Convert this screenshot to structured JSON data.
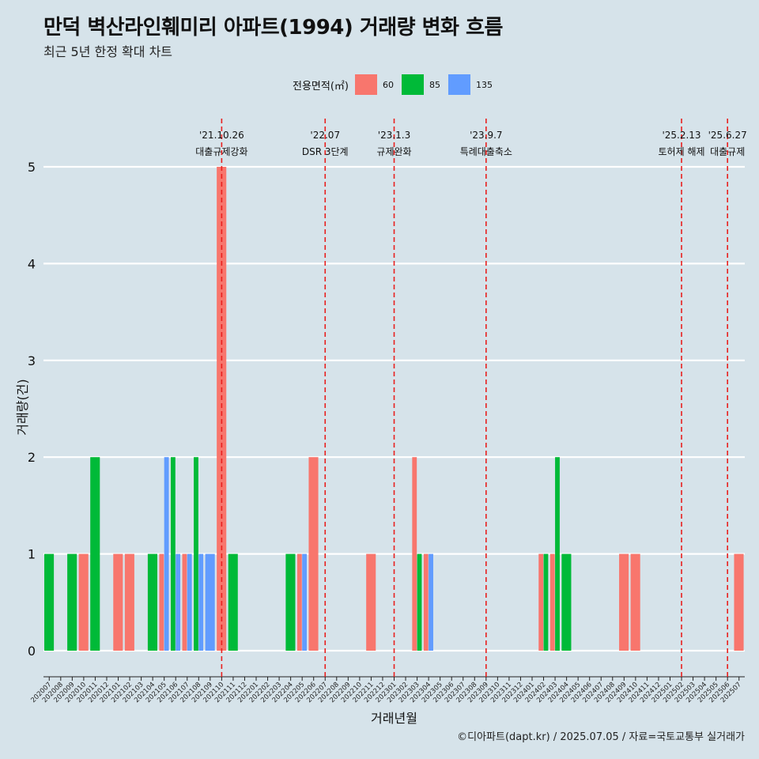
{
  "title": "만덕 벽산라인훼미리 아파트(1994) 거래량 변화 흐름",
  "subtitle": "최근 5년 한정 확대 차트",
  "caption": "©디아파트(dapt.kr) / 2025.07.05 / 자료=국토교통부 실거래가",
  "legend": {
    "title": "전용면적(㎡)",
    "items": [
      {
        "label": "60",
        "color": "#f8766d"
      },
      {
        "label": "85",
        "color": "#00ba38"
      },
      {
        "label": "135",
        "color": "#619cff"
      }
    ]
  },
  "chart_data": {
    "type": "bar",
    "xlabel": "거래년월",
    "ylabel": "거래량(건)",
    "ylim": [
      0,
      5
    ],
    "yticks": [
      0,
      1,
      2,
      3,
      4,
      5
    ],
    "grid": true,
    "legend_position": "top",
    "categories": [
      "202007",
      "202008",
      "202009",
      "202010",
      "202011",
      "202012",
      "202101",
      "202102",
      "202103",
      "202104",
      "202105",
      "202106",
      "202107",
      "202108",
      "202109",
      "202110",
      "202111",
      "202112",
      "202201",
      "202202",
      "202203",
      "202204",
      "202205",
      "202206",
      "202207",
      "202208",
      "202209",
      "202210",
      "202211",
      "202212",
      "202301",
      "202302",
      "202303",
      "202304",
      "202305",
      "202306",
      "202307",
      "202308",
      "202309",
      "202310",
      "202311",
      "202312",
      "202401",
      "202402",
      "202403",
      "202404",
      "202405",
      "202406",
      "202407",
      "202408",
      "202409",
      "202410",
      "202411",
      "202412",
      "202501",
      "202502",
      "202503",
      "202504",
      "202505",
      "202506",
      "202507"
    ],
    "series": [
      {
        "name": "60",
        "color": "#f8766d",
        "values": [
          0,
          0,
          0,
          1,
          0,
          0,
          1,
          1,
          0,
          0,
          1,
          0,
          1,
          0,
          0,
          5,
          0,
          0,
          0,
          0,
          0,
          0,
          1,
          2,
          0,
          0,
          0,
          0,
          1,
          0,
          0,
          0,
          2,
          1,
          0,
          0,
          0,
          0,
          0,
          0,
          0,
          0,
          0,
          1,
          1,
          0,
          0,
          0,
          0,
          0,
          1,
          1,
          0,
          0,
          0,
          0,
          0,
          0,
          0,
          0,
          1
        ]
      },
      {
        "name": "85",
        "color": "#00ba38",
        "values": [
          1,
          0,
          1,
          0,
          2,
          0,
          0,
          0,
          0,
          1,
          0,
          2,
          0,
          2,
          0,
          0,
          1,
          0,
          0,
          0,
          0,
          1,
          0,
          0,
          0,
          0,
          0,
          0,
          0,
          0,
          0,
          0,
          1,
          0,
          0,
          0,
          0,
          0,
          0,
          0,
          0,
          0,
          0,
          1,
          2,
          1,
          0,
          0,
          0,
          0,
          0,
          0,
          0,
          0,
          0,
          0,
          0,
          0,
          0,
          0,
          0
        ]
      },
      {
        "name": "135",
        "color": "#619cff",
        "values": [
          0,
          0,
          0,
          0,
          0,
          0,
          0,
          0,
          0,
          0,
          2,
          1,
          1,
          1,
          1,
          0,
          0,
          0,
          0,
          0,
          0,
          0,
          1,
          0,
          0,
          0,
          0,
          0,
          0,
          0,
          0,
          0,
          0,
          1,
          0,
          0,
          0,
          0,
          0,
          0,
          0,
          0,
          0,
          0,
          0,
          0,
          0,
          0,
          0,
          0,
          0,
          0,
          0,
          0,
          0,
          0,
          0,
          0,
          0,
          0,
          0
        ]
      }
    ],
    "annotations": [
      {
        "date": "'21.10.26",
        "label": "대출규제강화",
        "at": "202110"
      },
      {
        "date": "'22.07",
        "label": "DSR 3단계",
        "at": "202207"
      },
      {
        "date": "'23.1.3",
        "label": "규제완화",
        "at": "202301"
      },
      {
        "date": "'23.9.7",
        "label": "특례대출축소",
        "at": "202309"
      },
      {
        "date": "'25.2.13",
        "label": "토허제 해제",
        "at": "202502"
      },
      {
        "date": "'25.6.27",
        "label": "대출규제",
        "at": "202506"
      }
    ]
  }
}
